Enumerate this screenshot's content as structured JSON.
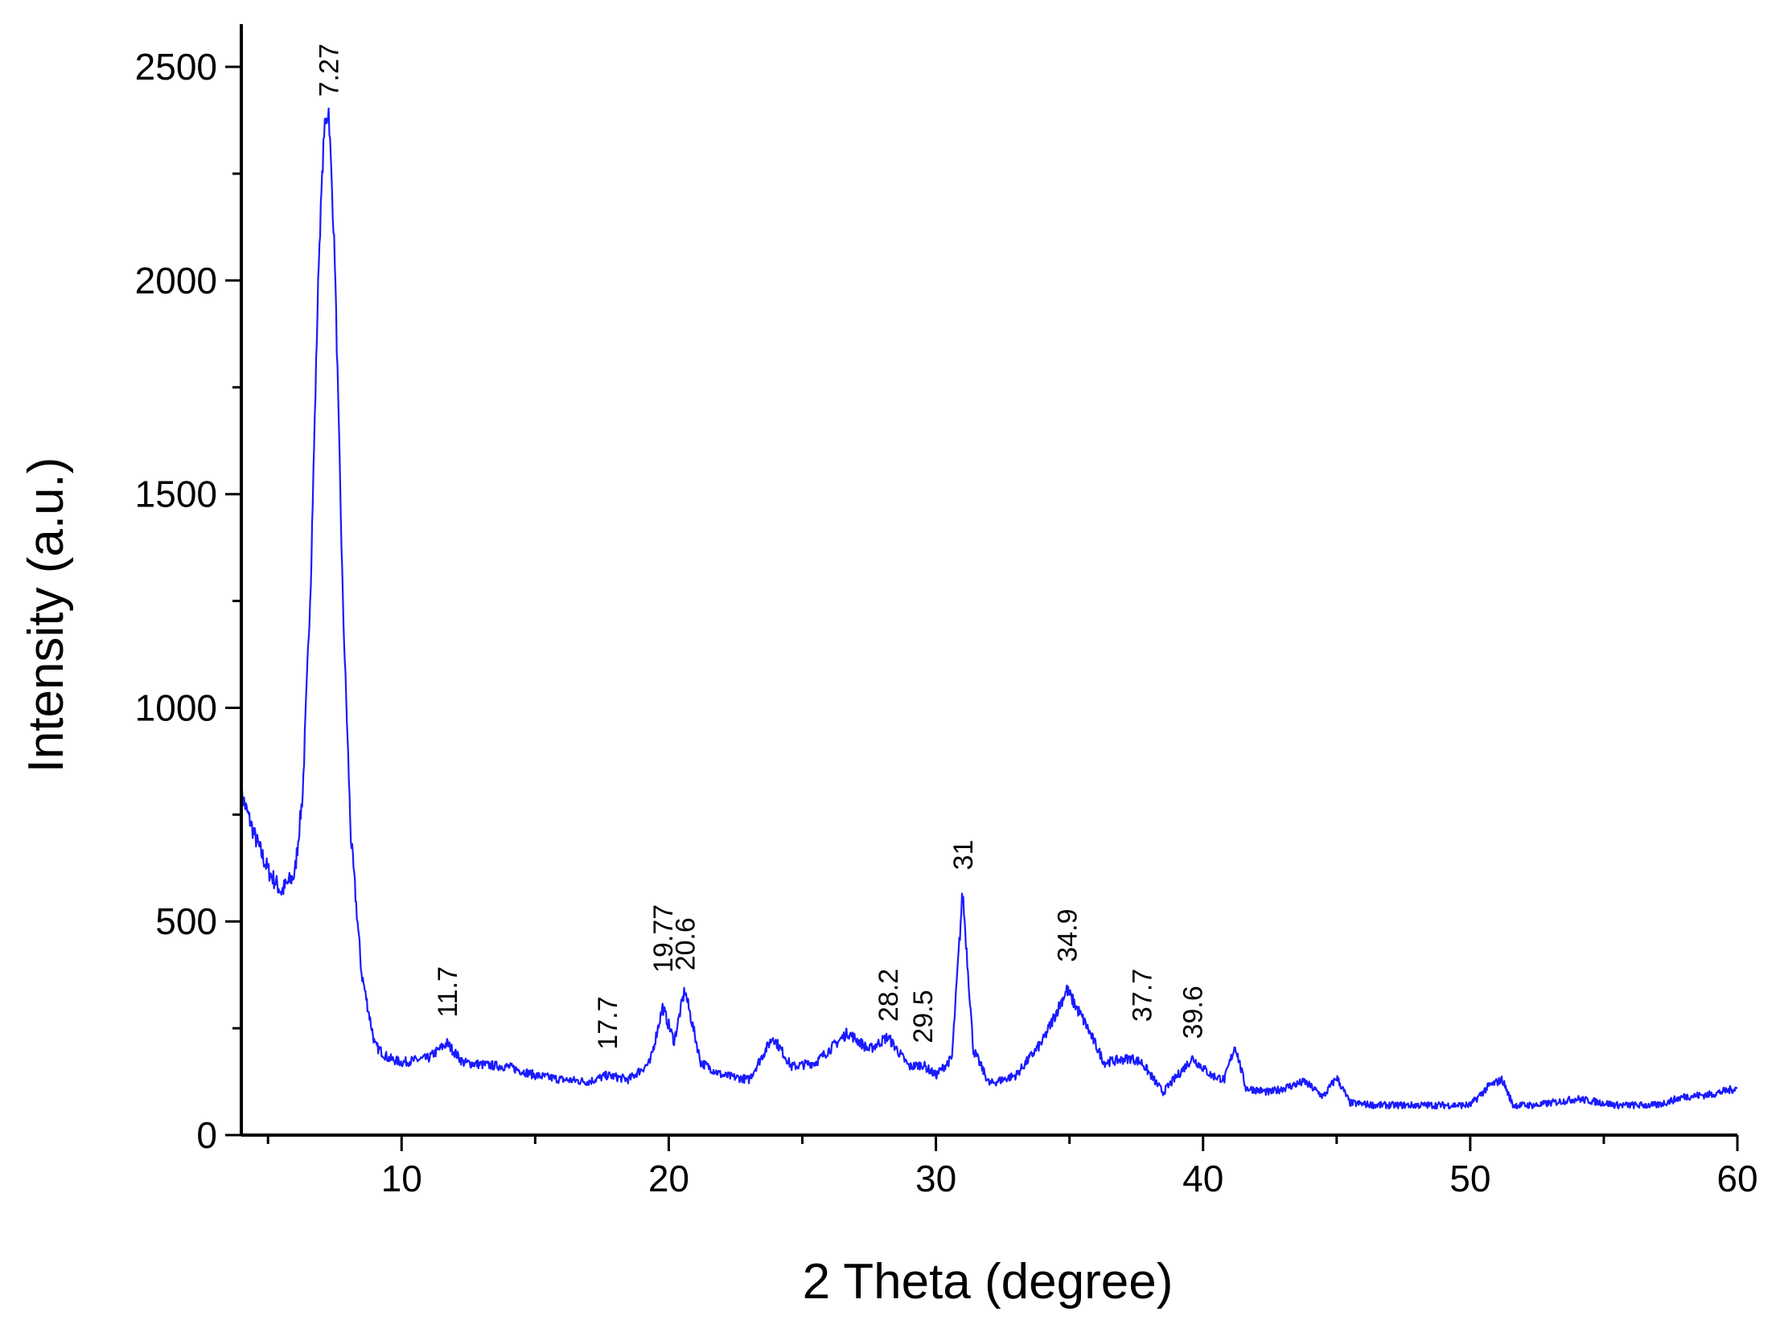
{
  "colors": {
    "series": "#1a1aff",
    "axis": "#000000"
  },
  "chart_data": {
    "type": "line",
    "xlabel": "2 Theta (degree)",
    "ylabel": "Intensity (a.u.)",
    "xlim": [
      4,
      60
    ],
    "ylim": [
      0,
      2600
    ],
    "x_ticks": [
      10,
      20,
      30,
      40,
      50,
      60
    ],
    "y_ticks": [
      0,
      500,
      1000,
      1500,
      2000,
      2500
    ],
    "grid": false,
    "legend": "none",
    "series": [
      {
        "x": [
          4,
          4.5,
          5,
          5.5,
          6,
          6.3,
          6.6,
          6.9,
          7.1,
          7.27,
          7.5,
          7.8,
          8.1,
          8.5,
          9,
          9.5,
          10,
          10.5,
          11,
          11.7,
          12.3,
          13,
          14,
          15,
          16,
          17,
          17.7,
          18.5,
          19.3,
          19.77,
          20.2,
          20.6,
          21.2,
          22,
          23,
          23.9,
          24.6,
          25.5,
          26.7,
          27.5,
          28.2,
          29,
          29.5,
          30,
          30.6,
          31,
          31.4,
          32,
          33,
          34,
          34.9,
          35.6,
          36.3,
          37.3,
          37.7,
          38.5,
          39.6,
          40.3,
          40.8,
          41.2,
          41.6,
          42.5,
          43.8,
          44.5,
          45,
          45.5,
          46.5,
          48,
          50,
          50.7,
          51.2,
          51.6,
          52.5,
          54,
          55.5,
          57,
          58,
          59,
          60
        ],
        "values": [
          800,
          700,
          620,
          570,
          610,
          800,
          1300,
          2050,
          2350,
          2400,
          2050,
          1250,
          700,
          380,
          210,
          180,
          170,
          175,
          180,
          215,
          170,
          165,
          160,
          140,
          130,
          125,
          140,
          130,
          170,
          300,
          220,
          340,
          170,
          140,
          130,
          230,
          160,
          170,
          240,
          200,
          230,
          160,
          165,
          140,
          180,
          570,
          200,
          120,
          140,
          220,
          340,
          260,
          170,
          180,
          170,
          100,
          180,
          140,
          130,
          210,
          110,
          100,
          125,
          90,
          135,
          75,
          70,
          70,
          70,
          115,
          130,
          70,
          70,
          85,
          70,
          70,
          90,
          95,
          110
        ]
      }
    ],
    "annotations": [
      {
        "text": "7.27",
        "x": 7.27,
        "y": 2430
      },
      {
        "text": "11.7",
        "x": 11.7,
        "y": 275
      },
      {
        "text": "17.7",
        "x": 17.7,
        "y": 200
      },
      {
        "text": "19.77",
        "x": 19.77,
        "y": 380
      },
      {
        "text": "20.6",
        "x": 20.6,
        "y": 385
      },
      {
        "text": "28.2",
        "x": 28.2,
        "y": 265
      },
      {
        "text": "29.5",
        "x": 29.5,
        "y": 215
      },
      {
        "text": "31",
        "x": 31,
        "y": 620
      },
      {
        "text": "34.9",
        "x": 34.9,
        "y": 405
      },
      {
        "text": "37.7",
        "x": 37.7,
        "y": 265
      },
      {
        "text": "39.6",
        "x": 39.6,
        "y": 225
      }
    ]
  }
}
